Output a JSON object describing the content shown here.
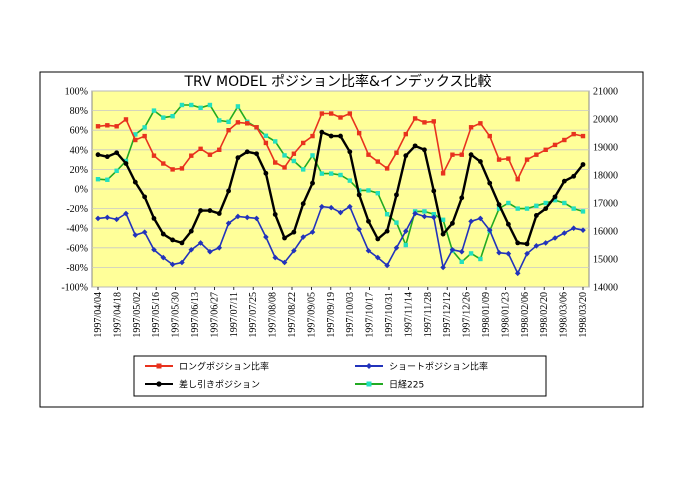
{
  "chart_data": {
    "type": "line",
    "title": "TRV MODEL ポジション比率&インデックス比較",
    "x_labels": [
      "1997/04/04",
      "1997/04/18",
      "1997/05/02",
      "1997/05/16",
      "1997/05/30",
      "1997/06/13",
      "1997/06/27",
      "1997/07/11",
      "1997/07/25",
      "1997/08/08",
      "1997/08/22",
      "1997/09/05",
      "1997/09/19",
      "1997/10/03",
      "1997/10/17",
      "1997/10/31",
      "1997/11/14",
      "1997/11/28",
      "1997/12/12",
      "1997/12/26",
      "1998/01/09",
      "1998/01/23",
      "1998/02/06",
      "1998/02/20",
      "1998/03/06",
      "1998/03/20"
    ],
    "y_left": {
      "min": -100,
      "max": 100,
      "step": 20,
      "tick_labels": [
        "100%",
        "80%",
        "60%",
        "40%",
        "20%",
        "0%",
        "-20%",
        "-40%",
        "-60%",
        "-80%",
        "-100%"
      ]
    },
    "y_right": {
      "min": 14000,
      "max": 21000,
      "step": 1000,
      "tick_labels": [
        "21000",
        "20000",
        "19000",
        "18000",
        "17000",
        "16000",
        "15000",
        "14000"
      ]
    },
    "series": [
      {
        "name": "ロングポジション比率",
        "axis": "left",
        "color": "#e8321e",
        "marker": "square",
        "values": [
          64,
          65,
          64,
          71,
          50,
          54,
          34,
          26,
          20,
          21,
          34,
          41,
          35,
          40,
          60,
          68,
          67,
          63,
          47,
          27,
          22,
          36,
          47,
          54,
          77,
          77,
          73,
          77,
          57,
          35,
          28,
          21,
          37,
          56,
          72,
          68,
          69,
          16,
          35,
          35,
          63,
          67,
          54,
          30,
          31,
          10,
          30,
          35,
          40,
          45,
          50,
          56,
          54
        ]
      },
      {
        "name": "ショートポジション比率",
        "axis": "left",
        "color": "#2233bb",
        "marker": "diamond",
        "values": [
          -30,
          -29,
          -31,
          -25,
          -47,
          -44,
          -62,
          -70,
          -77,
          -75,
          -62,
          -55,
          -64,
          -60,
          -35,
          -28,
          -29,
          -30,
          -49,
          -70,
          -75,
          -63,
          -49,
          -44,
          -18,
          -19,
          -24,
          -18,
          -41,
          -63,
          -70,
          -78,
          -60,
          -43,
          -25,
          -28,
          -29,
          -80,
          -62,
          -64,
          -33,
          -30,
          -42,
          -65,
          -66,
          -86,
          -66,
          -58,
          -55,
          -50,
          -45,
          -40,
          -42
        ]
      },
      {
        "name": "差し引きポジション",
        "axis": "left",
        "color": "#000000",
        "marker": "circle",
        "values": [
          35,
          33,
          37,
          26,
          7,
          -8,
          -30,
          -46,
          -52,
          -55,
          -43,
          -22,
          -22,
          -25,
          -2,
          32,
          38,
          36,
          16,
          -26,
          -50,
          -44,
          -15,
          6,
          58,
          54,
          54,
          38,
          -6,
          -33,
          -51,
          -43,
          -6,
          34,
          44,
          40,
          -2,
          -46,
          -35,
          -9,
          35,
          28,
          6,
          -16,
          -36,
          -55,
          -56,
          -27,
          -20,
          -8,
          8,
          13,
          25
        ]
      },
      {
        "name": "日経225",
        "axis": "right",
        "color": "#22e0c0",
        "line_color": "#22aa22",
        "marker": "square",
        "values": [
          17850,
          17830,
          18150,
          18500,
          19450,
          19700,
          20300,
          20050,
          20100,
          20500,
          20500,
          20400,
          20500,
          19950,
          19900,
          20450,
          19900,
          19700,
          19400,
          19200,
          18700,
          18500,
          18200,
          18700,
          18050,
          18050,
          18000,
          17800,
          17450,
          17450,
          17350,
          16600,
          16300,
          15500,
          16700,
          16700,
          16600,
          16400,
          15300,
          14900,
          15200,
          15000,
          16000,
          16800,
          17000,
          16800,
          16800,
          16900,
          17000,
          17100,
          17000,
          16800,
          16700
        ]
      }
    ],
    "legend_position": "bottom",
    "grid": true
  }
}
